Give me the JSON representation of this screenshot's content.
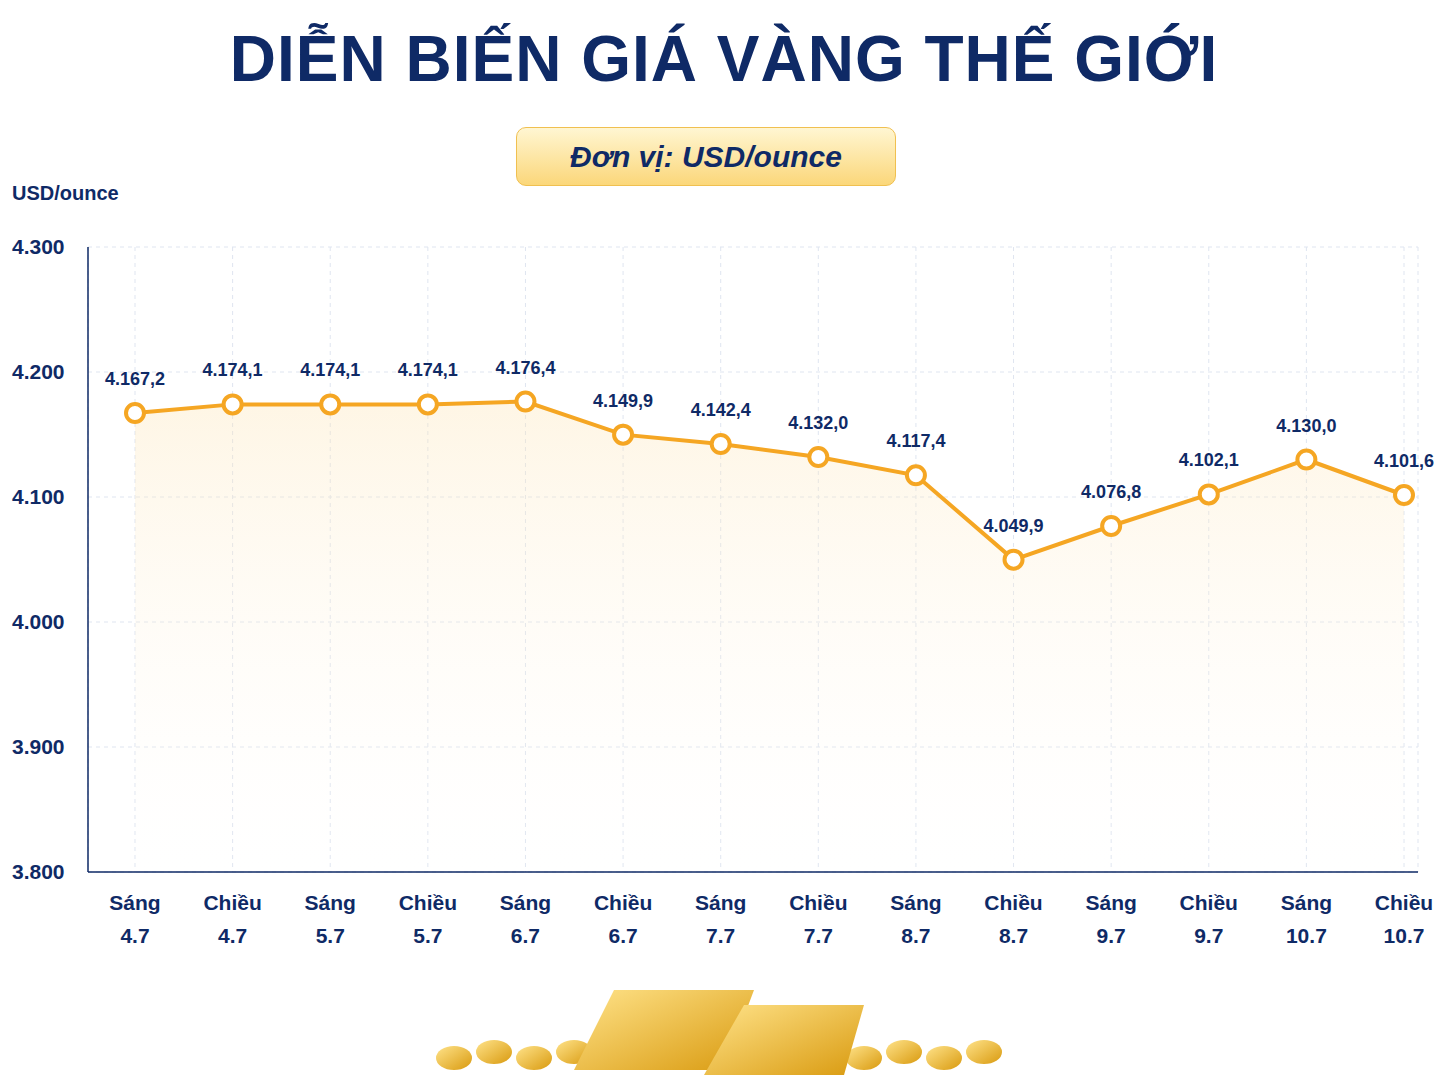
{
  "chart_data": {
    "type": "line",
    "title": "DIỄN BIẾN GIÁ VÀNG THẾ GIỚI",
    "subtitle": "Đơn vị: USD/ounce",
    "y_label": "USD/ounce",
    "categories": [
      "Sáng 4.7",
      "Chiều 4.7",
      "Sáng 5.7",
      "Chiều 5.7",
      "Sáng 6.7",
      "Chiều 6.7",
      "Sáng 7.7",
      "Chiều 7.7",
      "Sáng 8.7",
      "Chiều 8.7",
      "Sáng 9.7",
      "Chiều 9.7",
      "Sáng 10.7",
      "Chiều 10.7"
    ],
    "values": [
      4167.2,
      4174.1,
      4174.1,
      4174.1,
      4176.4,
      4149.9,
      4142.4,
      4132.0,
      4117.4,
      4049.9,
      4076.8,
      4102.1,
      4130.0,
      4101.6
    ],
    "value_labels": [
      "4.167,2",
      "4.174,1",
      "4.174,1",
      "4.174,1",
      "4.176,4",
      "4.149,9",
      "4.142,4",
      "4.132,0",
      "4.117,4",
      "4.049,9",
      "4.076,8",
      "4.102,1",
      "4.130,0",
      "4.101,6"
    ],
    "color": "#f5a623",
    "ylim": [
      3800,
      4300
    ],
    "yticks": [
      {
        "value": 3800,
        "label": "3.800"
      },
      {
        "value": 3900,
        "label": "3.900"
      },
      {
        "value": 4000,
        "label": "4.000"
      },
      {
        "value": 4100,
        "label": "4.100"
      },
      {
        "value": 4200,
        "label": "4.200"
      },
      {
        "value": 4300,
        "label": "4.300"
      }
    ],
    "grid": true,
    "data_labels": true,
    "marker": "circle",
    "line_style": "solid"
  }
}
